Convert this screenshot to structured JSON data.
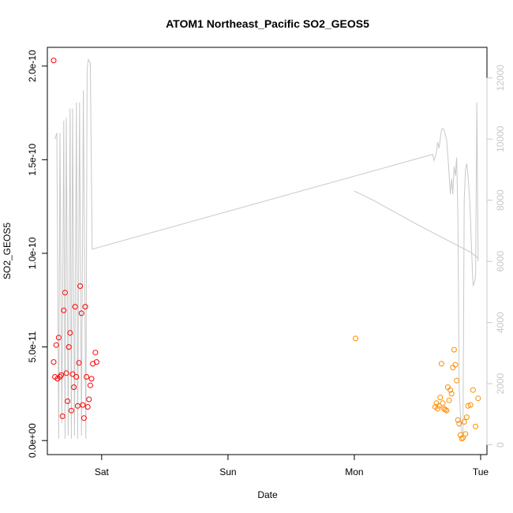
{
  "chart_data": {
    "type": "scatter",
    "title": "ATOM1 Northeast_Pacific SO2_GEOS5",
    "xlabel": "Date",
    "ylabel": "SO2_GEOS5",
    "x_ticks": [
      "Sat",
      "Sun",
      "Mon",
      "Tue"
    ],
    "y_ticks": [
      "0.0e+00",
      "5.0e-11",
      "1.0e-10",
      "1.5e-10",
      "2.0e-10"
    ],
    "y_tick_values": [
      0,
      5e-11,
      1e-10,
      1.5e-10,
      2e-10
    ],
    "y2_ticks": [
      "0",
      "2000",
      "4000",
      "6000",
      "8000",
      "10000",
      "12000"
    ],
    "y2_tick_values": [
      0,
      2000,
      4000,
      6000,
      8000,
      10000,
      12000
    ],
    "xlim": [
      -0.43,
      3.05
    ],
    "ylim": [
      -7.5e-12,
      2.1e-10
    ],
    "y2lim": [
      -320,
      13000
    ],
    "grid": false,
    "legend": "none",
    "colors": {
      "series1": "#ff0000",
      "series2": "#ff8c00",
      "altitude": "#c8c8c8",
      "axis": "#000000",
      "axis2": "#c8c8c8"
    },
    "series": [
      {
        "color": "#ff0000",
        "points": [
          [
            -0.38,
            4.2e-11
          ],
          [
            -0.37,
            3.4e-11
          ],
          [
            -0.36,
            5.1e-11
          ],
          [
            -0.35,
            3.3e-11
          ],
          [
            -0.34,
            5.5e-11
          ],
          [
            -0.33,
            3.4e-11
          ],
          [
            -0.32,
            3.5e-11
          ],
          [
            -0.31,
            1.3e-11
          ],
          [
            -0.3,
            6.95e-11
          ],
          [
            -0.29,
            7.9e-11
          ],
          [
            -0.28,
            3.6e-11
          ],
          [
            -0.27,
            2.1e-11
          ],
          [
            -0.26,
            5e-11
          ],
          [
            -0.25,
            5.75e-11
          ],
          [
            -0.24,
            1.6e-11
          ],
          [
            -0.23,
            3.55e-11
          ],
          [
            -0.22,
            2.85e-11
          ],
          [
            -0.21,
            7.15e-11
          ],
          [
            -0.2,
            3.4e-11
          ],
          [
            -0.19,
            1.85e-11
          ],
          [
            -0.18,
            4.15e-11
          ],
          [
            -0.17,
            8.25e-11
          ],
          [
            -0.16,
            6.8e-11
          ],
          [
            -0.15,
            1.9e-11
          ],
          [
            -0.14,
            1.2e-11
          ],
          [
            -0.13,
            7.15e-11
          ],
          [
            -0.12,
            3.4e-11
          ],
          [
            -0.11,
            1.8e-11
          ],
          [
            -0.1,
            2.2e-11
          ],
          [
            -0.09,
            2.95e-11
          ],
          [
            -0.08,
            3.3e-11
          ],
          [
            -0.07,
            4.1e-11
          ],
          [
            -0.05,
            4.7e-11
          ],
          [
            -0.04,
            4.2e-11
          ],
          [
            -0.38,
            2.03e-10
          ]
        ]
      },
      {
        "color": "#ff8c00",
        "points": [
          [
            2.01,
            5.45e-11
          ],
          [
            2.64,
            1.8e-11
          ],
          [
            2.65,
            2e-11
          ],
          [
            2.66,
            1.7e-11
          ],
          [
            2.67,
            1.85e-11
          ],
          [
            2.68,
            2.3e-11
          ],
          [
            2.69,
            4.1e-11
          ],
          [
            2.7,
            2e-11
          ],
          [
            2.71,
            1.7e-11
          ],
          [
            2.72,
            1.65e-11
          ],
          [
            2.73,
            1.6e-11
          ],
          [
            2.74,
            2.85e-11
          ],
          [
            2.75,
            2.15e-11
          ],
          [
            2.76,
            2.7e-11
          ],
          [
            2.77,
            2.5e-11
          ],
          [
            2.78,
            3.9e-11
          ],
          [
            2.79,
            4.85e-11
          ],
          [
            2.8,
            4.05e-11
          ],
          [
            2.81,
            3.2e-11
          ],
          [
            2.82,
            1.1e-11
          ],
          [
            2.83,
            9e-12
          ],
          [
            2.84,
            3e-12
          ],
          [
            2.85,
            1e-12
          ],
          [
            2.86,
            1.5e-12
          ],
          [
            2.87,
            1e-11
          ],
          [
            2.88,
            3.5e-12
          ],
          [
            2.89,
            1.25e-11
          ],
          [
            2.9,
            1.85e-11
          ],
          [
            2.92,
            1.9e-11
          ],
          [
            2.94,
            2.7e-11
          ],
          [
            2.96,
            7.5e-12
          ],
          [
            2.98,
            2.25e-11
          ]
        ]
      }
    ],
    "altitude_path": [
      [
        -0.37,
        10000
      ],
      [
        -0.355,
        10200
      ],
      [
        -0.34,
        200
      ],
      [
        -0.33,
        10200
      ],
      [
        -0.315,
        700
      ],
      [
        -0.3,
        10600
      ],
      [
        -0.29,
        200
      ],
      [
        -0.28,
        10700
      ],
      [
        -0.265,
        300
      ],
      [
        -0.25,
        11000
      ],
      [
        -0.24,
        200
      ],
      [
        -0.23,
        11000
      ],
      [
        -0.215,
        300
      ],
      [
        -0.2,
        11200
      ],
      [
        -0.19,
        200
      ],
      [
        -0.175,
        11200
      ],
      [
        -0.16,
        300
      ],
      [
        -0.145,
        11600
      ],
      [
        -0.125,
        200
      ],
      [
        -0.115,
        12300
      ],
      [
        -0.105,
        12600
      ],
      [
        -0.09,
        12500
      ],
      [
        -0.075,
        6400
      ],
      [
        2.62,
        9500
      ],
      [
        2.63,
        9300
      ],
      [
        2.64,
        9400
      ],
      [
        2.65,
        9600
      ],
      [
        2.66,
        9900
      ],
      [
        2.67,
        9700
      ],
      [
        2.69,
        10300
      ],
      [
        2.7,
        10350
      ],
      [
        2.71,
        10300
      ],
      [
        2.73,
        10000
      ],
      [
        2.745,
        9200
      ],
      [
        2.76,
        8200
      ],
      [
        2.77,
        8700
      ],
      [
        2.78,
        8200
      ],
      [
        2.79,
        9100
      ],
      [
        2.8,
        8800
      ],
      [
        2.81,
        9400
      ],
      [
        2.82,
        7500
      ],
      [
        2.83,
        1900
      ],
      [
        2.845,
        500
      ],
      [
        2.86,
        300
      ],
      [
        2.87,
        8000
      ],
      [
        2.88,
        9000
      ],
      [
        2.89,
        9200
      ],
      [
        2.9,
        8800
      ],
      [
        2.915,
        7900
      ],
      [
        2.93,
        6200
      ],
      [
        2.94,
        5200
      ],
      [
        2.95,
        5300
      ],
      [
        2.96,
        5500
      ],
      [
        2.97,
        11200
      ],
      [
        2.975,
        8700
      ],
      [
        2.98,
        6000
      ],
      [
        2.98,
        6100
      ],
      [
        2.92,
        6300
      ],
      [
        2.5,
        7200
      ],
      [
        2.15,
        8000
      ],
      [
        2.0,
        8300
      ]
    ]
  }
}
